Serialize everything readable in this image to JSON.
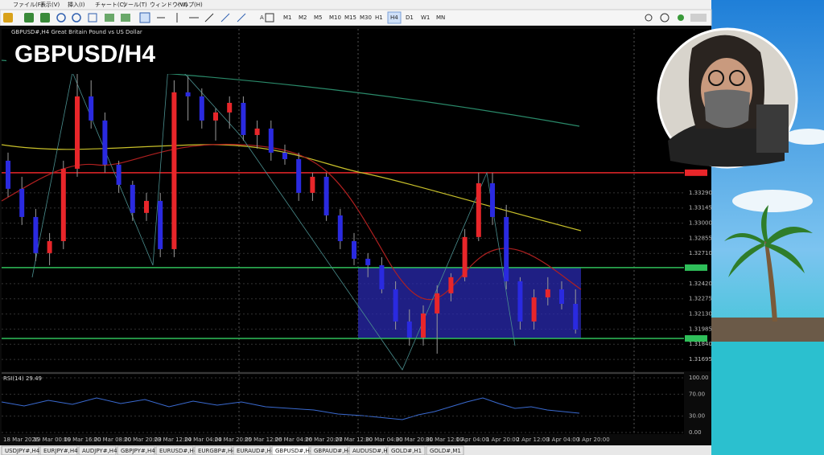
{
  "menu": [
    "ファイル(F)",
    "表示(V)",
    "挿入(I)",
    "チャート(C)",
    "ツール(T)",
    "ウィンドウ(W)",
    "ヘルプ(H)"
  ],
  "timeframes": [
    "M1",
    "M2",
    "M5",
    "M10",
    "M15",
    "M30",
    "H1",
    "H4",
    "D1",
    "W1",
    "MN"
  ],
  "active_timeframe": "H4",
  "chart": {
    "title": "GBPUSD#,H4  Great Britain Pound vs US Dollar",
    "overlay_label": "GBPUSD/H4",
    "up_color": "#e8262a",
    "down_color": "#2a2ae0",
    "price_lim": [
      1.3158,
      1.3486
    ],
    "price_ticks": [
      {
        "value": 1.3329,
        "label": "1.33290"
      },
      {
        "value": 1.33145,
        "label": "1.33145"
      },
      {
        "value": 1.33,
        "label": "1.33000"
      },
      {
        "value": 1.32855,
        "label": "1.32855"
      },
      {
        "value": 1.3271,
        "label": "1.32710"
      },
      {
        "value": 1.3242,
        "label": "1.32420"
      },
      {
        "value": 1.32275,
        "label": "1.32275"
      },
      {
        "value": 1.3213,
        "label": "1.32130"
      },
      {
        "value": 1.31985,
        "label": "1.31985"
      },
      {
        "value": 1.3184,
        "label": "1.31840"
      },
      {
        "value": 1.31695,
        "label": "1.31695"
      }
    ],
    "levels": [
      {
        "value": 1.33483,
        "color": "#e8262a"
      },
      {
        "value": 1.32574,
        "color": "#2fbf5a"
      },
      {
        "value": 1.31896,
        "color": "#2fbf5a"
      }
    ],
    "candles": [
      [
        1.33598,
        1.33675,
        1.33252,
        1.33329
      ],
      [
        1.33329,
        1.33444,
        1.32982,
        1.33059
      ],
      [
        1.33059,
        1.33136,
        1.32636,
        1.32713
      ],
      [
        1.32713,
        1.32905,
        1.32597,
        1.32828
      ],
      [
        1.32828,
        1.33598,
        1.32751,
        1.33521
      ],
      [
        1.33521,
        1.34445,
        1.33444,
        1.34214
      ],
      [
        1.34214,
        1.34368,
        1.33906,
        1.33983
      ],
      [
        1.33983,
        1.3406,
        1.33483,
        1.3356
      ],
      [
        1.3356,
        1.33598,
        1.3329,
        1.33367
      ],
      [
        1.33367,
        1.33406,
        1.33021,
        1.33098
      ],
      [
        1.33098,
        1.3329,
        1.33021,
        1.33213
      ],
      [
        1.33213,
        1.3329,
        1.32674,
        1.32751
      ],
      [
        1.32751,
        1.34368,
        1.32674,
        1.34253
      ],
      [
        1.34253,
        1.34407,
        1.33983,
        1.34214
      ],
      [
        1.34214,
        1.34291,
        1.33906,
        1.33983
      ],
      [
        1.33983,
        1.34099,
        1.33791,
        1.3406
      ],
      [
        1.3406,
        1.34214,
        1.33906,
        1.34152
      ],
      [
        1.34152,
        1.34214,
        1.33791,
        1.33844
      ],
      [
        1.33844,
        1.33983,
        1.33714,
        1.33906
      ],
      [
        1.33906,
        1.33983,
        1.33598,
        1.33675
      ],
      [
        1.33675,
        1.33752,
        1.3356,
        1.33613
      ],
      [
        1.33613,
        1.33675,
        1.33213,
        1.3329
      ],
      [
        1.3329,
        1.33483,
        1.33213,
        1.33444
      ],
      [
        1.33444,
        1.33483,
        1.33021,
        1.33074
      ],
      [
        1.33074,
        1.33136,
        1.32751,
        1.32828
      ],
      [
        1.32828,
        1.32905,
        1.32597,
        1.32659
      ],
      [
        1.32659,
        1.32713,
        1.32482,
        1.32597
      ],
      [
        1.32597,
        1.32674,
        1.32328,
        1.32366
      ],
      [
        1.32366,
        1.32443,
        1.31981,
        1.32058
      ],
      [
        1.32058,
        1.32174,
        1.31827,
        1.31904
      ],
      [
        1.31904,
        1.32212,
        1.31827,
        1.32135
      ],
      [
        1.32135,
        1.32405,
        1.3175,
        1.32328
      ],
      [
        1.32328,
        1.3252,
        1.32251,
        1.32482
      ],
      [
        1.32482,
        1.32944,
        1.32443,
        1.32867
      ],
      [
        1.32867,
        1.33483,
        1.32828,
        1.33382
      ],
      [
        1.33382,
        1.33483,
        1.32982,
        1.33059
      ],
      [
        1.33059,
        1.33175,
        1.32366,
        1.32443
      ],
      [
        1.32443,
        1.32482,
        1.31981,
        1.32058
      ],
      [
        1.32058,
        1.32366,
        1.31981,
        1.32289
      ],
      [
        1.32289,
        1.32482,
        1.32212,
        1.32366
      ],
      [
        1.32366,
        1.32443,
        1.32174,
        1.32227
      ],
      [
        1.32227,
        1.32366,
        1.31943,
        1.31981
      ]
    ],
    "time_labels": [
      "18 Mar 2026",
      "19 Mar 00:00",
      "19 Mar 16:00",
      "20 Mar 08:00",
      "20 Mar 20:00",
      "23 Mar 12:00",
      "24 Mar 04:00",
      "24 Mar 20:00",
      "25 Mar 12:00",
      "26 Mar 04:00",
      "26 Mar 20:00",
      "27 Mar 12:00",
      "30 Mar 04:00",
      "30 Mar 20:00",
      "31 Mar 12:00",
      "1 Apr 04:00",
      "1 Apr 20:00",
      "2 Apr 12:00",
      "3 Apr 04:00",
      "3 Apr 20:00"
    ],
    "rsi": {
      "label": "RSI(14) 29.49",
      "lim": [
        0,
        100
      ],
      "ticks": [
        {
          "value": 100,
          "label": "100.00"
        },
        {
          "value": 70,
          "label": "70.00"
        },
        {
          "value": 30,
          "label": "30.00"
        },
        {
          "value": 0,
          "label": "0.00"
        }
      ]
    }
  },
  "tabs": [
    "USDJPY#,H4",
    "EURJPY#,H4",
    "AUDJPY#,H4",
    "GBPJPY#,H4",
    "EURUSD#,H4",
    "EURGBP#,H4",
    "EURAUD#,H4",
    "GBPUSD#,H4",
    "GBPAUD#,H4",
    "AUDUSD#,H4",
    "GOLD#,H1",
    "GOLD#,M1"
  ],
  "active_tab": "GBPUSD#,H4"
}
